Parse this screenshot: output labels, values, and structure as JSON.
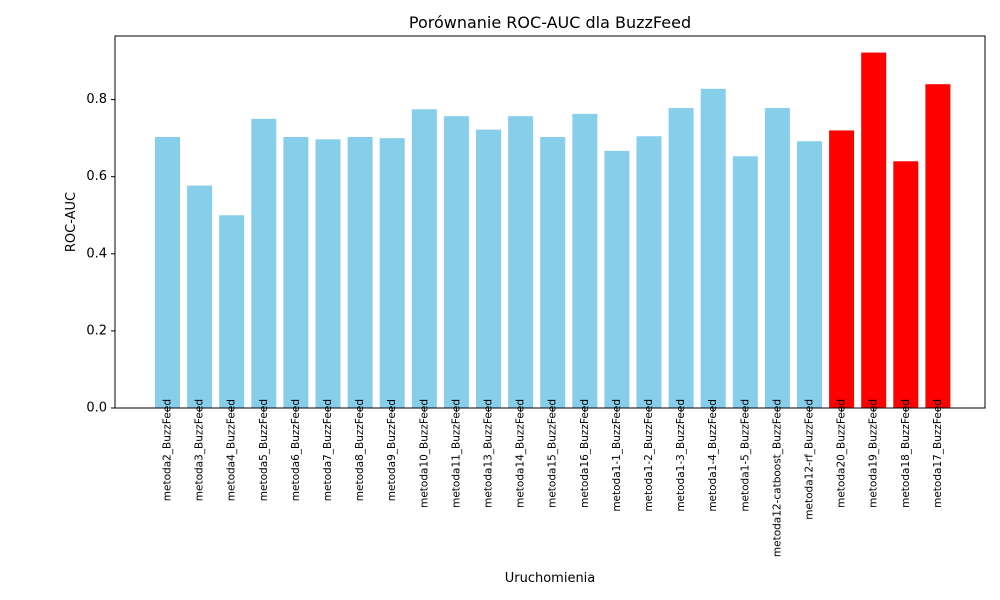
{
  "chart_data": {
    "type": "bar",
    "title": "Porównanie ROC-AUC dla BuzzFeed",
    "xlabel": "Uruchomienia",
    "ylabel": "ROC-AUC",
    "ylim": [
      0,
      0.965
    ],
    "yticks": [
      "0.0",
      "0.2",
      "0.4",
      "0.6",
      "0.8"
    ],
    "ytick_values": [
      0.0,
      0.2,
      0.4,
      0.6,
      0.8
    ],
    "grid": false,
    "colors": {
      "default": "#87CEEB",
      "highlight": "#FF0000"
    },
    "categories": [
      "metoda2_BuzzFeed",
      "metoda3_BuzzFeed",
      "metoda4_BuzzFeed",
      "metoda5_BuzzFeed",
      "metoda6_BuzzFeed",
      "metoda7_BuzzFeed",
      "metoda8_BuzzFeed",
      "metoda9_BuzzFeed",
      "metoda10_BuzzFeed",
      "metoda11_BuzzFeed",
      "metoda13_BuzzFeed",
      "metoda14_BuzzFeed",
      "metoda15_BuzzFeed",
      "metoda16_BuzzFeed",
      "metoda1-1_BuzzFeed",
      "metoda1-2_BuzzFeed",
      "metoda1-3_BuzzFeed",
      "metoda1-4_BuzzFeed",
      "metoda1-5_BuzzFeed",
      "metoda12-catboost_BuzzFeed",
      "metoda12-rf_BuzzFeed",
      "metoda20_BuzzFeed",
      "metoda19_BuzzFeed",
      "metoda18_BuzzFeed",
      "metoda17_BuzzFeed"
    ],
    "values": [
      0.703,
      0.577,
      0.5,
      0.75,
      0.703,
      0.697,
      0.703,
      0.7,
      0.775,
      0.757,
      0.722,
      0.757,
      0.703,
      0.763,
      0.667,
      0.705,
      0.778,
      0.828,
      0.653,
      0.778,
      0.692,
      0.72,
      0.922,
      0.64,
      0.84
    ],
    "highlighted": [
      false,
      false,
      false,
      false,
      false,
      false,
      false,
      false,
      false,
      false,
      false,
      false,
      false,
      false,
      false,
      false,
      false,
      false,
      false,
      false,
      false,
      true,
      true,
      true,
      true
    ]
  }
}
